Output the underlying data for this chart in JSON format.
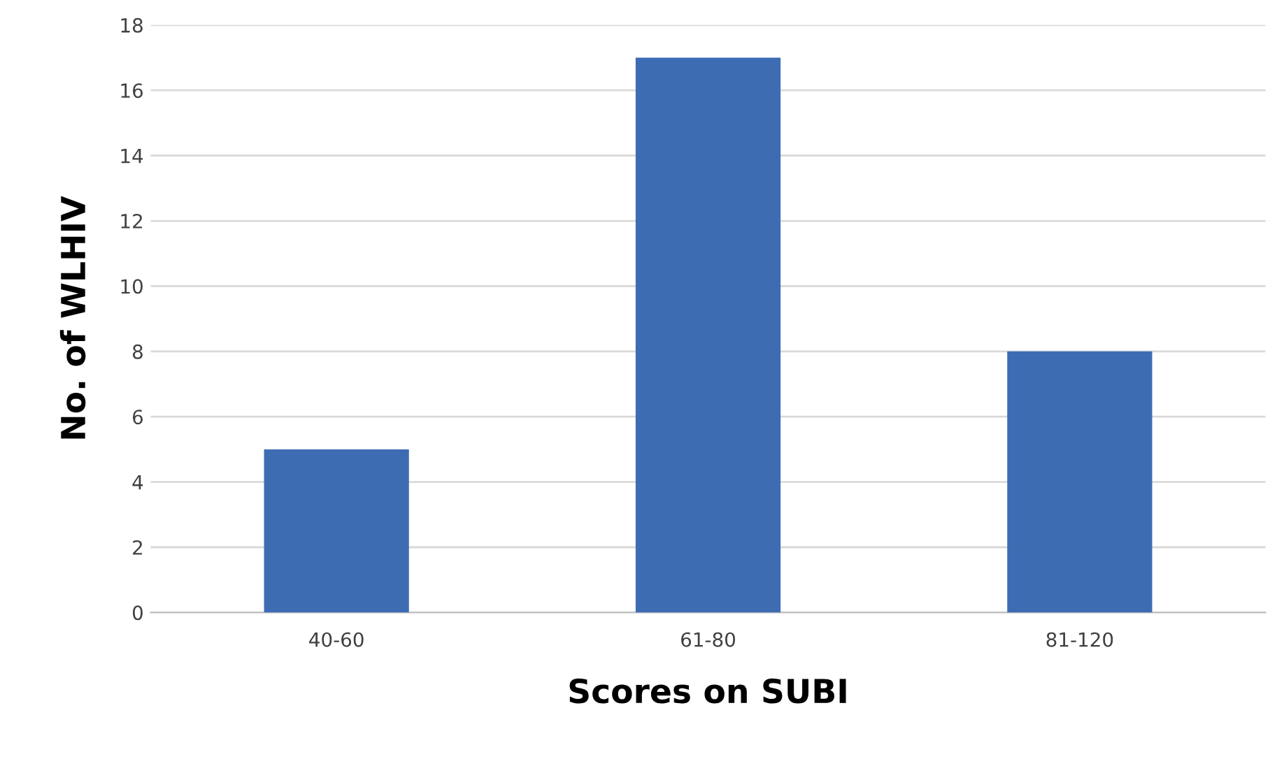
{
  "chart_data": {
    "type": "bar",
    "xlabel": "Scores on SUBI",
    "ylabel": "No. of WLHIV",
    "categories": [
      "40-60",
      "61-80",
      "81-120"
    ],
    "values": [
      5,
      17,
      8
    ],
    "color": "#3d6cb3",
    "ylim": [
      0,
      18
    ],
    "yticks": [
      0,
      2,
      4,
      6,
      8,
      10,
      12,
      14,
      16,
      18
    ],
    "grid": "y",
    "legend": false
  }
}
